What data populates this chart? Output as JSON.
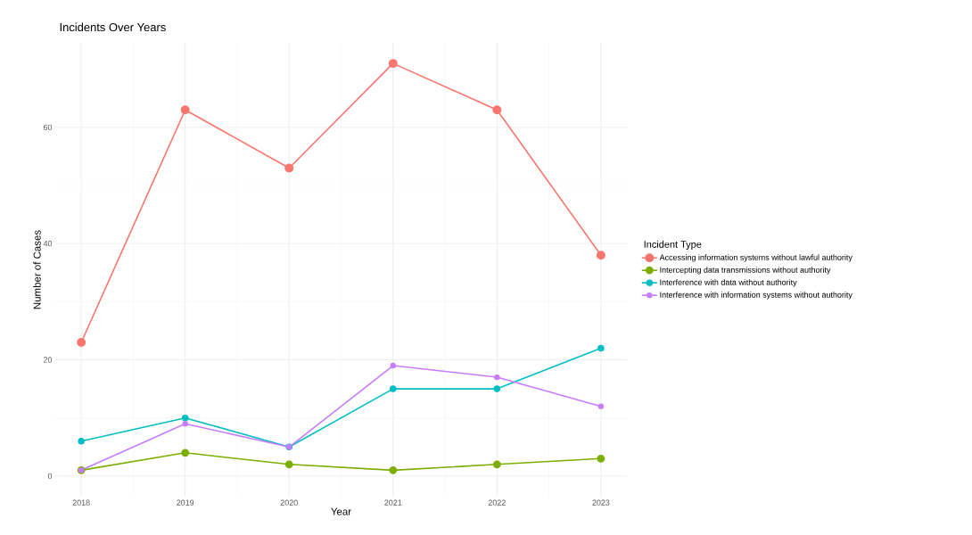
{
  "chart_data": {
    "type": "line",
    "title": "Incidents Over Years",
    "xlabel": "Year",
    "ylabel": "Number of Cases",
    "legend_title": "Incident Type",
    "x": [
      2018,
      2019,
      2020,
      2021,
      2022,
      2023
    ],
    "series": [
      {
        "name": "Accessing information systems without lawful authority",
        "color": "#f8766d",
        "values": [
          23,
          63,
          53,
          71,
          63,
          38
        ]
      },
      {
        "name": "Intercepting data transmissions without authority",
        "color": "#7cae00",
        "values": [
          1,
          4,
          2,
          1,
          2,
          3
        ]
      },
      {
        "name": "Interference with data without authority",
        "color": "#00bfc4",
        "values": [
          6,
          10,
          5,
          15,
          15,
          22
        ]
      },
      {
        "name": "Interference with information systems without authority",
        "color": "#c77cff",
        "values": [
          1,
          9,
          5,
          19,
          17,
          12
        ]
      }
    ],
    "xlim": [
      2017.75,
      2023.25
    ],
    "ylim": [
      -3.55,
      74.55
    ],
    "xticks": [
      2018,
      2019,
      2020,
      2021,
      2022,
      2023
    ],
    "yticks": [
      0,
      20,
      40,
      60
    ],
    "grid": true,
    "legend": "right",
    "marker": "circle",
    "line_style": "solid"
  }
}
